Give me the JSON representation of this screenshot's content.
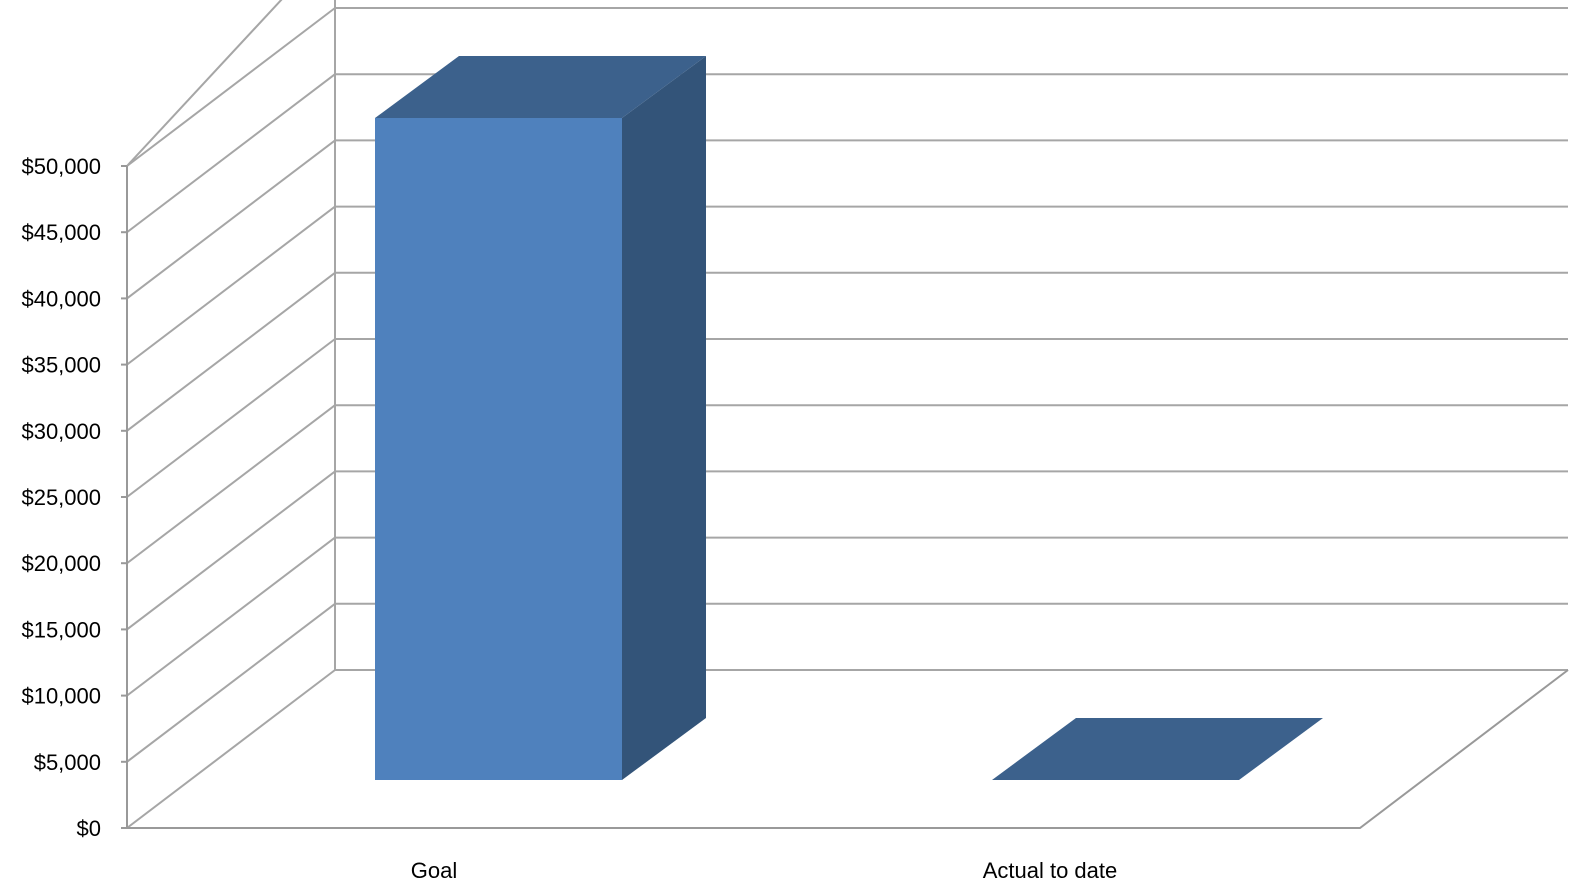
{
  "chart_data": {
    "type": "bar",
    "style": "3d-column",
    "categories": [
      "Goal",
      "Actual to date"
    ],
    "values": [
      50000,
      0
    ],
    "ylim": [
      0,
      50000
    ],
    "y_ticks": [
      "$0",
      "$5,000",
      "$10,000",
      "$15,000",
      "$20,000",
      "$25,000",
      "$30,000",
      "$35,000",
      "$40,000",
      "$45,000",
      "$50,000"
    ],
    "y_tick_values": [
      0,
      5000,
      10000,
      15000,
      20000,
      25000,
      30000,
      35000,
      40000,
      45000,
      50000
    ],
    "title": "",
    "xlabel": "",
    "ylabel": "",
    "grid": true,
    "legend": "none",
    "colors": {
      "bar_front": "#4f81bd",
      "bar_top": "#3c618c",
      "bar_side": "#335479",
      "grid": "#a6a6a6"
    }
  }
}
